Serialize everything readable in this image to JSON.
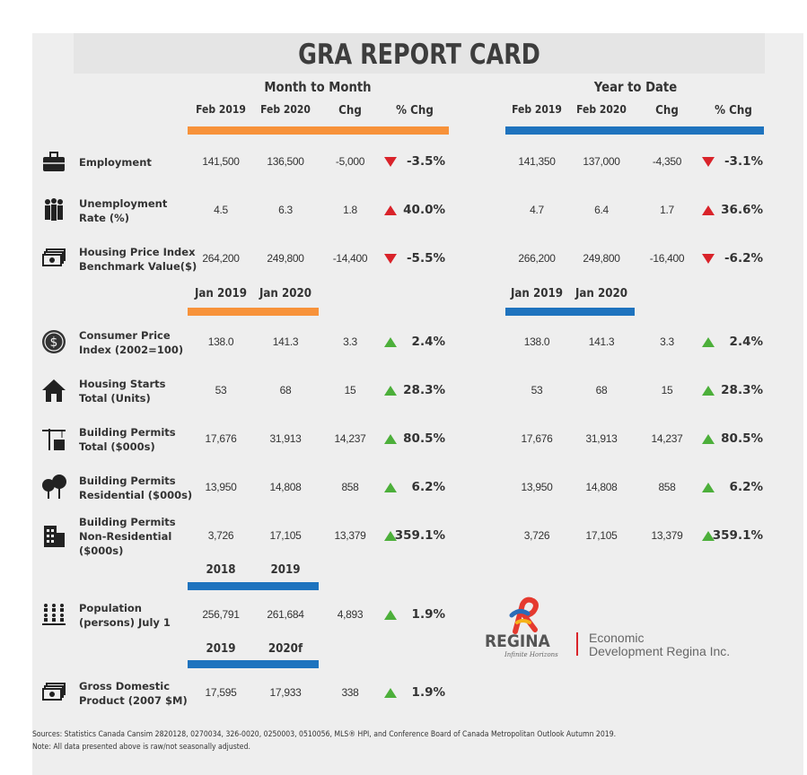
{
  "title": "GRA REPORT CARD",
  "groups": {
    "month": "Month to Month",
    "year": "Year to Date"
  },
  "headers": {
    "mm": [
      "Feb 2019",
      "Feb 2020",
      "Chg",
      "% Chg"
    ],
    "ytd": [
      "Feb 2019",
      "Feb 2020",
      "Chg",
      "% Chg"
    ],
    "jan_mm": [
      "Jan 2019",
      "Jan 2020"
    ],
    "jan_ytd": [
      "Jan 2019",
      "Jan 2020"
    ],
    "pop": [
      "2018",
      "2019"
    ],
    "gdp": [
      "2019",
      "2020f"
    ]
  },
  "rows": [
    {
      "icon": "briefcase-icon",
      "label": "Employment",
      "mm": [
        "141,500",
        "136,500",
        "-5,000",
        "-3.5%"
      ],
      "mm_dir": "down",
      "ytd": [
        "141,350",
        "137,000",
        "-4,350",
        "-3.1%"
      ],
      "ytd_dir": "down"
    },
    {
      "icon": "people-icon",
      "label": "Unemployment\nRate (%)",
      "mm": [
        "4.5",
        "6.3",
        "1.8",
        "40.0%"
      ],
      "mm_dir": "up-red",
      "ytd": [
        "4.7",
        "6.4",
        "1.7",
        "36.6%"
      ],
      "ytd_dir": "up-red"
    },
    {
      "icon": "money-icon",
      "label": "Housing Price Index\nBenchmark Value($)",
      "mm": [
        "264,200",
        "249,800",
        "-14,400",
        "-5.5%"
      ],
      "mm_dir": "down",
      "ytd": [
        "266,200",
        "249,800",
        "-16,400",
        "-6.2%"
      ],
      "ytd_dir": "down"
    },
    {
      "icon": "dollar-coin-icon",
      "label": "Consumer Price\nIndex (2002=100)",
      "mm": [
        "138.0",
        "141.3",
        "3.3",
        "2.4%"
      ],
      "mm_dir": "up",
      "ytd": [
        "138.0",
        "141.3",
        "3.3",
        "2.4%"
      ],
      "ytd_dir": "up"
    },
    {
      "icon": "house-icon",
      "label": "Housing Starts\nTotal (Units)",
      "mm": [
        "53",
        "68",
        "15",
        "28.3%"
      ],
      "mm_dir": "up",
      "ytd": [
        "53",
        "68",
        "15",
        "28.3%"
      ],
      "ytd_dir": "up"
    },
    {
      "icon": "crane-icon",
      "label": "Building Permits\nTotal ($000s)",
      "mm": [
        "17,676",
        "31,913",
        "14,237",
        "80.5%"
      ],
      "mm_dir": "up",
      "ytd": [
        "17,676",
        "31,913",
        "14,237",
        "80.5%"
      ],
      "ytd_dir": "up"
    },
    {
      "icon": "trees-icon",
      "label": "Building Permits\nResidential ($000s)",
      "mm": [
        "13,950",
        "14,808",
        "858",
        "6.2%"
      ],
      "mm_dir": "up",
      "ytd": [
        "13,950",
        "14,808",
        "858",
        "6.2%"
      ],
      "ytd_dir": "up"
    },
    {
      "icon": "office-building-icon",
      "label": "Building Permits\nNon-Residential\n($000s)",
      "mm": [
        "3,726",
        "17,105",
        "13,379",
        "359.1%"
      ],
      "mm_dir": "up",
      "ytd": [
        "3,726",
        "17,105",
        "13,379",
        "359.1%"
      ],
      "ytd_dir": "up"
    },
    {
      "icon": "population-icon",
      "label": "Population\n(persons) July 1",
      "mm": [
        "256,791",
        "261,684",
        "4,893",
        "1.9%"
      ],
      "mm_dir": "up"
    },
    {
      "icon": "money-icon",
      "label": "Gross Domestic\nProduct (2007 $M)",
      "mm": [
        "17,595",
        "17,933",
        "338",
        "1.9%"
      ],
      "mm_dir": "up"
    }
  ],
  "logo": {
    "name": "REGINA",
    "tagline": "Infinite Horizons",
    "org": "Economic\nDevelopment Regina Inc."
  },
  "footer": {
    "sources": "Sources: Statistics Canada Cansim 2820128, 0270034, 326-0020, 0250003, 0510056, MLS® HPI, and Conference Board of Canada Metropolitan Outlook Autumn 2019.",
    "note": "Note: All data presented above is raw/not seasonally adjusted."
  },
  "colors": {
    "orange": "#f7923a",
    "blue": "#1e73be",
    "up": "#4caf3a",
    "down": "#d9232a"
  }
}
